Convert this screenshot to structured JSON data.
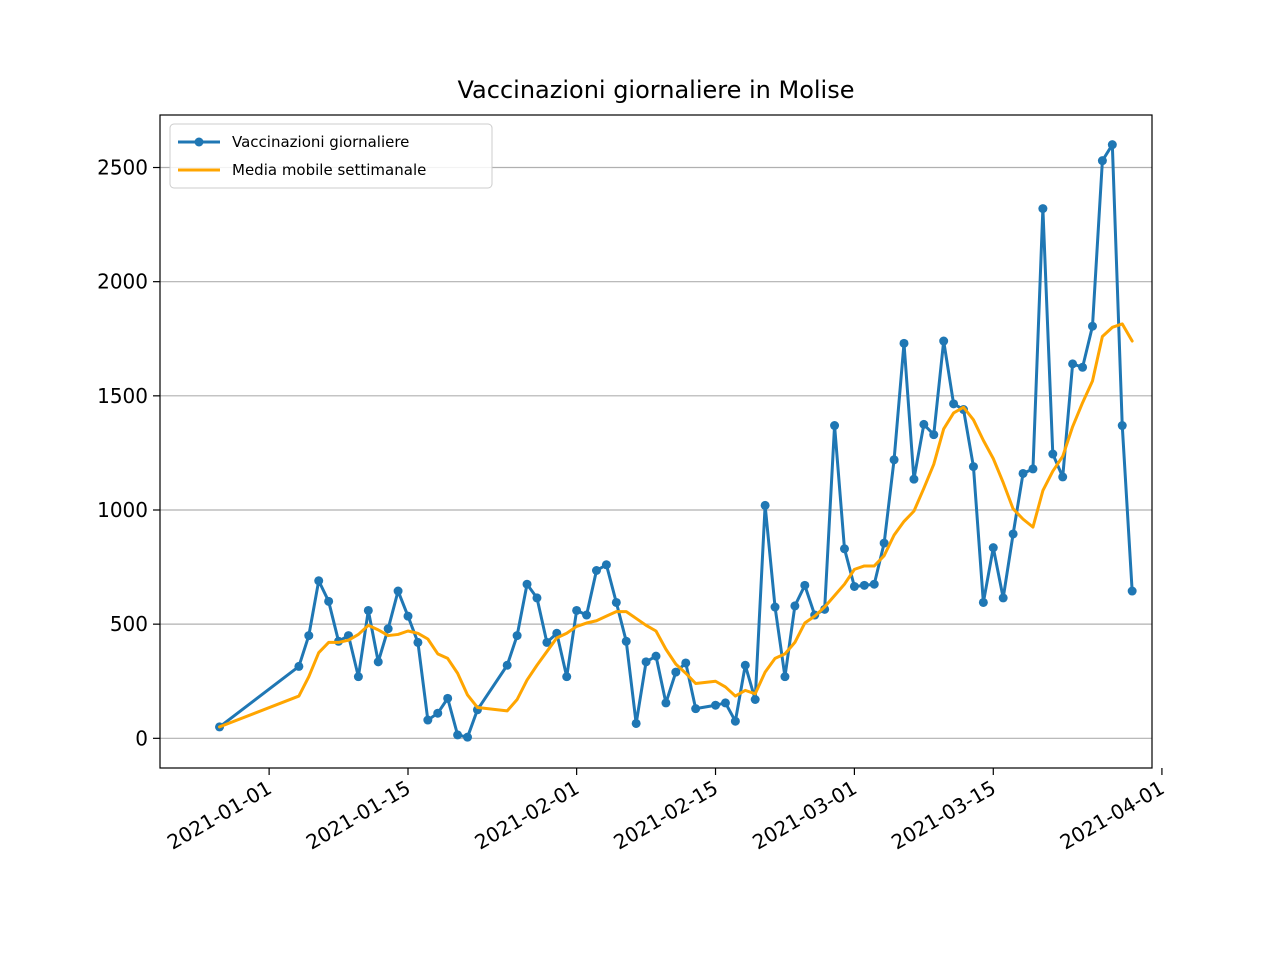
{
  "chart_data": {
    "type": "line",
    "title": "Vaccinazioni giornaliere in Molise",
    "xlabel": "",
    "ylabel": "",
    "x_type": "date",
    "xlim": [
      "2020-12-21",
      "2021-03-31"
    ],
    "ylim": [
      -130,
      2730
    ],
    "x_ticks": [
      "2021-01-01",
      "2021-01-15",
      "2021-02-01",
      "2021-02-15",
      "2021-03-01",
      "2021-03-15",
      "2021-04-01"
    ],
    "y_ticks": [
      0,
      500,
      1000,
      1500,
      2000,
      2500
    ],
    "grid": "y",
    "legend_position": "top-left",
    "series": [
      {
        "name": "Vaccinazioni giornaliere",
        "color": "#1f77b4",
        "marker": "circle",
        "points": [
          [
            "2020-12-27",
            50
          ],
          [
            "2021-01-04",
            315
          ],
          [
            "2021-01-05",
            450
          ],
          [
            "2021-01-06",
            690
          ],
          [
            "2021-01-07",
            600
          ],
          [
            "2021-01-08",
            425
          ],
          [
            "2021-01-09",
            450
          ],
          [
            "2021-01-10",
            270
          ],
          [
            "2021-01-11",
            560
          ],
          [
            "2021-01-12",
            335
          ],
          [
            "2021-01-13",
            480
          ],
          [
            "2021-01-14",
            645
          ],
          [
            "2021-01-15",
            535
          ],
          [
            "2021-01-16",
            420
          ],
          [
            "2021-01-17",
            80
          ],
          [
            "2021-01-18",
            110
          ],
          [
            "2021-01-19",
            175
          ],
          [
            "2021-01-20",
            15
          ],
          [
            "2021-01-21",
            5
          ],
          [
            "2021-01-22",
            125
          ],
          [
            "2021-01-25",
            320
          ],
          [
            "2021-01-26",
            450
          ],
          [
            "2021-01-27",
            675
          ],
          [
            "2021-01-28",
            615
          ],
          [
            "2021-01-29",
            420
          ],
          [
            "2021-01-30",
            460
          ],
          [
            "2021-01-31",
            270
          ],
          [
            "2021-02-01",
            560
          ],
          [
            "2021-02-02",
            540
          ],
          [
            "2021-02-03",
            735
          ],
          [
            "2021-02-04",
            760
          ],
          [
            "2021-02-05",
            595
          ],
          [
            "2021-02-06",
            425
          ],
          [
            "2021-02-07",
            65
          ],
          [
            "2021-02-08",
            335
          ],
          [
            "2021-02-09",
            360
          ],
          [
            "2021-02-10",
            155
          ],
          [
            "2021-02-11",
            290
          ],
          [
            "2021-02-12",
            330
          ],
          [
            "2021-02-13",
            130
          ],
          [
            "2021-02-15",
            145
          ],
          [
            "2021-02-16",
            155
          ],
          [
            "2021-02-17",
            75
          ],
          [
            "2021-02-18",
            320
          ],
          [
            "2021-02-19",
            170
          ],
          [
            "2021-02-20",
            1020
          ],
          [
            "2021-02-21",
            575
          ],
          [
            "2021-02-22",
            270
          ],
          [
            "2021-02-23",
            580
          ],
          [
            "2021-02-24",
            670
          ],
          [
            "2021-02-25",
            540
          ],
          [
            "2021-02-26",
            565
          ],
          [
            "2021-02-27",
            1370
          ],
          [
            "2021-02-28",
            830
          ],
          [
            "2021-03-01",
            665
          ],
          [
            "2021-03-02",
            670
          ],
          [
            "2021-03-03",
            675
          ],
          [
            "2021-03-04",
            855
          ],
          [
            "2021-03-05",
            1220
          ],
          [
            "2021-03-06",
            1730
          ],
          [
            "2021-03-07",
            1135
          ],
          [
            "2021-03-08",
            1375
          ],
          [
            "2021-03-09",
            1330
          ],
          [
            "2021-03-10",
            1740
          ],
          [
            "2021-03-11",
            1465
          ],
          [
            "2021-03-12",
            1440
          ],
          [
            "2021-03-13",
            1190
          ],
          [
            "2021-03-14",
            595
          ],
          [
            "2021-03-15",
            835
          ],
          [
            "2021-03-16",
            615
          ],
          [
            "2021-03-17",
            895
          ],
          [
            "2021-03-18",
            1160
          ],
          [
            "2021-03-19",
            1180
          ],
          [
            "2021-03-20",
            2320
          ],
          [
            "2021-03-21",
            1245
          ],
          [
            "2021-03-22",
            1145
          ],
          [
            "2021-03-23",
            1640
          ],
          [
            "2021-03-24",
            1625
          ],
          [
            "2021-03-25",
            1805
          ],
          [
            "2021-03-26",
            2530
          ],
          [
            "2021-03-27",
            2600
          ],
          [
            "2021-03-28",
            1370
          ],
          [
            "2021-03-29",
            645
          ]
        ]
      },
      {
        "name": "Media mobile settimanale",
        "color": "#ffa500",
        "marker": "none",
        "points": [
          [
            "2020-12-27",
            50
          ],
          [
            "2021-01-04",
            185
          ],
          [
            "2021-01-05",
            270
          ],
          [
            "2021-01-06",
            375
          ],
          [
            "2021-01-07",
            420
          ],
          [
            "2021-01-08",
            420
          ],
          [
            "2021-01-09",
            430
          ],
          [
            "2021-01-10",
            455
          ],
          [
            "2021-01-11",
            495
          ],
          [
            "2021-01-12",
            475
          ],
          [
            "2021-01-13",
            450
          ],
          [
            "2021-01-14",
            455
          ],
          [
            "2021-01-15",
            470
          ],
          [
            "2021-01-16",
            460
          ],
          [
            "2021-01-17",
            435
          ],
          [
            "2021-01-18",
            370
          ],
          [
            "2021-01-19",
            350
          ],
          [
            "2021-01-20",
            285
          ],
          [
            "2021-01-21",
            190
          ],
          [
            "2021-01-22",
            135
          ],
          [
            "2021-01-25",
            120
          ],
          [
            "2021-01-26",
            170
          ],
          [
            "2021-01-27",
            255
          ],
          [
            "2021-01-28",
            320
          ],
          [
            "2021-01-29",
            380
          ],
          [
            "2021-01-30",
            440
          ],
          [
            "2021-01-31",
            460
          ],
          [
            "2021-02-01",
            490
          ],
          [
            "2021-02-02",
            505
          ],
          [
            "2021-02-03",
            515
          ],
          [
            "2021-02-04",
            535
          ],
          [
            "2021-02-05",
            555
          ],
          [
            "2021-02-06",
            555
          ],
          [
            "2021-02-07",
            525
          ],
          [
            "2021-02-08",
            495
          ],
          [
            "2021-02-09",
            470
          ],
          [
            "2021-02-10",
            390
          ],
          [
            "2021-02-11",
            325
          ],
          [
            "2021-02-12",
            285
          ],
          [
            "2021-02-13",
            240
          ],
          [
            "2021-02-15",
            250
          ],
          [
            "2021-02-16",
            225
          ],
          [
            "2021-02-17",
            185
          ],
          [
            "2021-02-18",
            210
          ],
          [
            "2021-02-19",
            195
          ],
          [
            "2021-02-20",
            290
          ],
          [
            "2021-02-21",
            350
          ],
          [
            "2021-02-22",
            370
          ],
          [
            "2021-02-23",
            420
          ],
          [
            "2021-02-24",
            505
          ],
          [
            "2021-02-25",
            535
          ],
          [
            "2021-02-26",
            575
          ],
          [
            "2021-02-27",
            625
          ],
          [
            "2021-02-28",
            675
          ],
          [
            "2021-03-01",
            740
          ],
          [
            "2021-03-02",
            755
          ],
          [
            "2021-03-03",
            755
          ],
          [
            "2021-03-04",
            800
          ],
          [
            "2021-03-05",
            890
          ],
          [
            "2021-03-06",
            950
          ],
          [
            "2021-03-07",
            995
          ],
          [
            "2021-03-08",
            1095
          ],
          [
            "2021-03-09",
            1200
          ],
          [
            "2021-03-10",
            1355
          ],
          [
            "2021-03-11",
            1425
          ],
          [
            "2021-03-12",
            1450
          ],
          [
            "2021-03-13",
            1395
          ],
          [
            "2021-03-14",
            1305
          ],
          [
            "2021-03-15",
            1225
          ],
          [
            "2021-03-16",
            1120
          ],
          [
            "2021-03-17",
            1005
          ],
          [
            "2021-03-18",
            960
          ],
          [
            "2021-03-19",
            925
          ],
          [
            "2021-03-20",
            1085
          ],
          [
            "2021-03-21",
            1170
          ],
          [
            "2021-03-22",
            1235
          ],
          [
            "2021-03-23",
            1365
          ],
          [
            "2021-03-24",
            1470
          ],
          [
            "2021-03-25",
            1565
          ],
          [
            "2021-03-26",
            1760
          ],
          [
            "2021-03-27",
            1800
          ],
          [
            "2021-03-28",
            1815
          ],
          [
            "2021-03-29",
            1740
          ]
        ]
      }
    ]
  }
}
